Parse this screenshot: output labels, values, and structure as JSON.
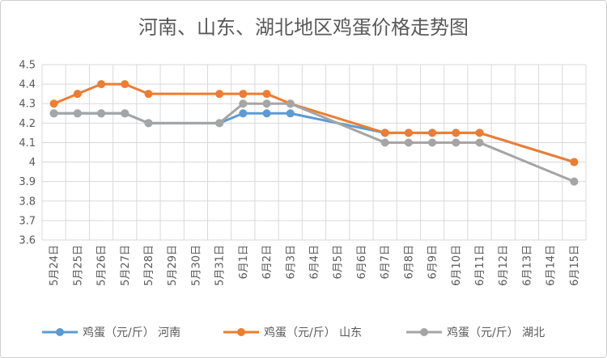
{
  "chart_data": {
    "type": "line",
    "title": "河南、山东、湖北地区鸡蛋价格走势图",
    "xlabel": "",
    "ylabel": "",
    "categories": [
      "5月24日",
      "5月25日",
      "5月26日",
      "5月27日",
      "5月28日",
      "5月29日",
      "5月30日",
      "5月31日",
      "6月1日",
      "6月2日",
      "6月3日",
      "6月4日",
      "6月5日",
      "6月6日",
      "6月7日",
      "6月8日",
      "6月9日",
      "6月10日",
      "6月11日",
      "6月12日",
      "6月13日",
      "6月14日",
      "6月15日"
    ],
    "ylim": [
      3.6,
      4.5
    ],
    "yticks": [
      3.6,
      3.7,
      3.8,
      3.9,
      4,
      4.1,
      4.2,
      4.3,
      4.4,
      4.5
    ],
    "grid": true,
    "legend_position": "bottom",
    "series": [
      {
        "name": "鸡蛋（元/斤） 河南",
        "color": "#5b9bd5",
        "values": [
          4.25,
          4.25,
          4.25,
          4.25,
          4.2,
          null,
          null,
          4.2,
          4.25,
          4.25,
          4.25,
          null,
          null,
          null,
          4.15,
          4.15,
          4.15,
          4.15,
          4.15,
          null,
          null,
          null,
          4.0
        ]
      },
      {
        "name": "鸡蛋（元/斤） 山东",
        "color": "#ed7d31",
        "values": [
          4.3,
          4.35,
          4.4,
          4.4,
          4.35,
          null,
          null,
          4.35,
          4.35,
          4.35,
          4.3,
          null,
          null,
          null,
          4.15,
          4.15,
          4.15,
          4.15,
          4.15,
          null,
          null,
          null,
          4.0
        ]
      },
      {
        "name": "鸡蛋（元/斤） 湖北",
        "color": "#a5a5a5",
        "values": [
          4.25,
          4.25,
          4.25,
          4.25,
          4.2,
          null,
          null,
          4.2,
          4.3,
          4.3,
          4.3,
          null,
          null,
          null,
          4.1,
          4.1,
          4.1,
          4.1,
          4.1,
          null,
          null,
          null,
          3.9
        ]
      }
    ]
  }
}
